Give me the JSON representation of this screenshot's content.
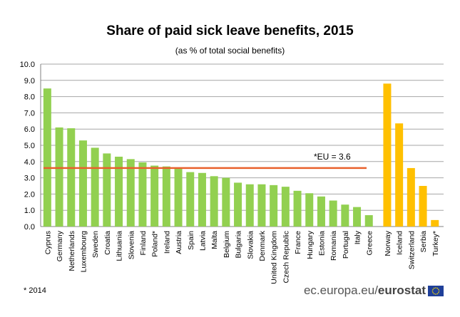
{
  "chart_data": {
    "type": "bar",
    "title": "Share of paid sick leave benefits, 2015",
    "subtitle": "(as % of total social benefits)",
    "xlabel": "",
    "ylabel": "",
    "ylim": [
      0,
      10
    ],
    "yticks": [
      "0.0",
      "1.0",
      "2.0",
      "3.0",
      "4.0",
      "5.0",
      "6.0",
      "7.0",
      "8.0",
      "9.0",
      "10.0"
    ],
    "grid": true,
    "series": [
      {
        "color": "#92d050",
        "categories": [
          "Cyprus",
          "Germany",
          "Netherlands",
          "Luxembourg",
          "Sweden",
          "Croatia",
          "Lithuania",
          "Slovenia",
          "Finland",
          "Poland*",
          "Ireland",
          "Austria",
          "Spain",
          "Latvia",
          "Malta",
          "Belgium",
          "Bulgaria",
          "Slovakia",
          "Denmark",
          "United Kingdom",
          "Czech Republic",
          "France",
          "Hungary",
          "Estonia",
          "Romania",
          "Portugal",
          "Italy",
          "Greece"
        ],
        "values": [
          8.5,
          6.1,
          6.05,
          5.3,
          4.85,
          4.5,
          4.3,
          4.15,
          3.95,
          3.75,
          3.7,
          3.55,
          3.35,
          3.3,
          3.1,
          3.0,
          2.7,
          2.6,
          2.6,
          2.55,
          2.45,
          2.2,
          2.05,
          1.85,
          1.6,
          1.35,
          1.2,
          0.7
        ]
      },
      {
        "color": "#ffc000",
        "categories": [
          "Norway",
          "Iceland",
          "Switzerland",
          "Serbia",
          "Turkey*"
        ],
        "values": [
          8.8,
          6.35,
          3.6,
          2.5,
          0.4
        ]
      }
    ],
    "reference_line": {
      "value": 3.6,
      "label": "*EU = 3.6",
      "color": "#e8602c"
    }
  },
  "footnote": "* 2014",
  "source": {
    "prefix": "ec.europa.eu/",
    "brand": "eurostat"
  }
}
